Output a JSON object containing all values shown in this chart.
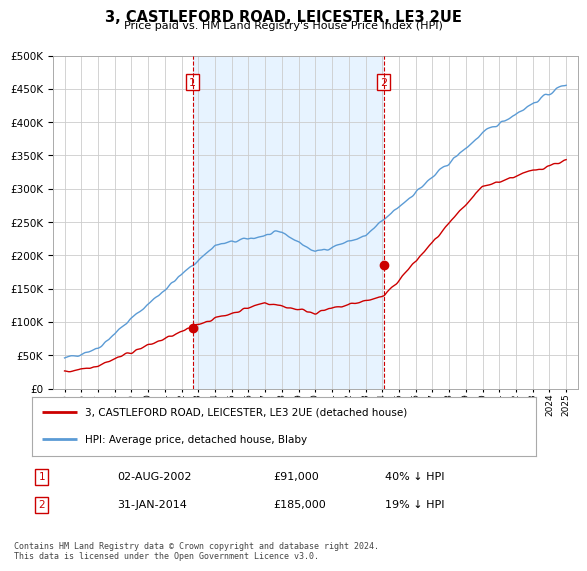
{
  "title": "3, CASTLEFORD ROAD, LEICESTER, LE3 2UE",
  "subtitle": "Price paid vs. HM Land Registry's House Price Index (HPI)",
  "sale1_price": 91000,
  "sale1_label": "02-AUG-2002",
  "sale1_pct": "40% ↓ HPI",
  "sale2_price": 185000,
  "sale2_label": "31-JAN-2014",
  "sale2_pct": "19% ↓ HPI",
  "hpi_line_color": "#5b9bd5",
  "price_line_color": "#cc0000",
  "vline_color": "#cc0000",
  "marker_box_color": "#cc0000",
  "shade_color": "#ddeeff",
  "ylim": [
    0,
    500000
  ],
  "yticks": [
    0,
    50000,
    100000,
    150000,
    200000,
    250000,
    300000,
    350000,
    400000,
    450000,
    500000
  ],
  "legend_line1": "3, CASTLEFORD ROAD, LEICESTER, LE3 2UE (detached house)",
  "legend_line2": "HPI: Average price, detached house, Blaby",
  "footer": "Contains HM Land Registry data © Crown copyright and database right 2024.\nThis data is licensed under the Open Government Licence v3.0.",
  "bg_color": "#ffffff",
  "grid_color": "#cccccc"
}
